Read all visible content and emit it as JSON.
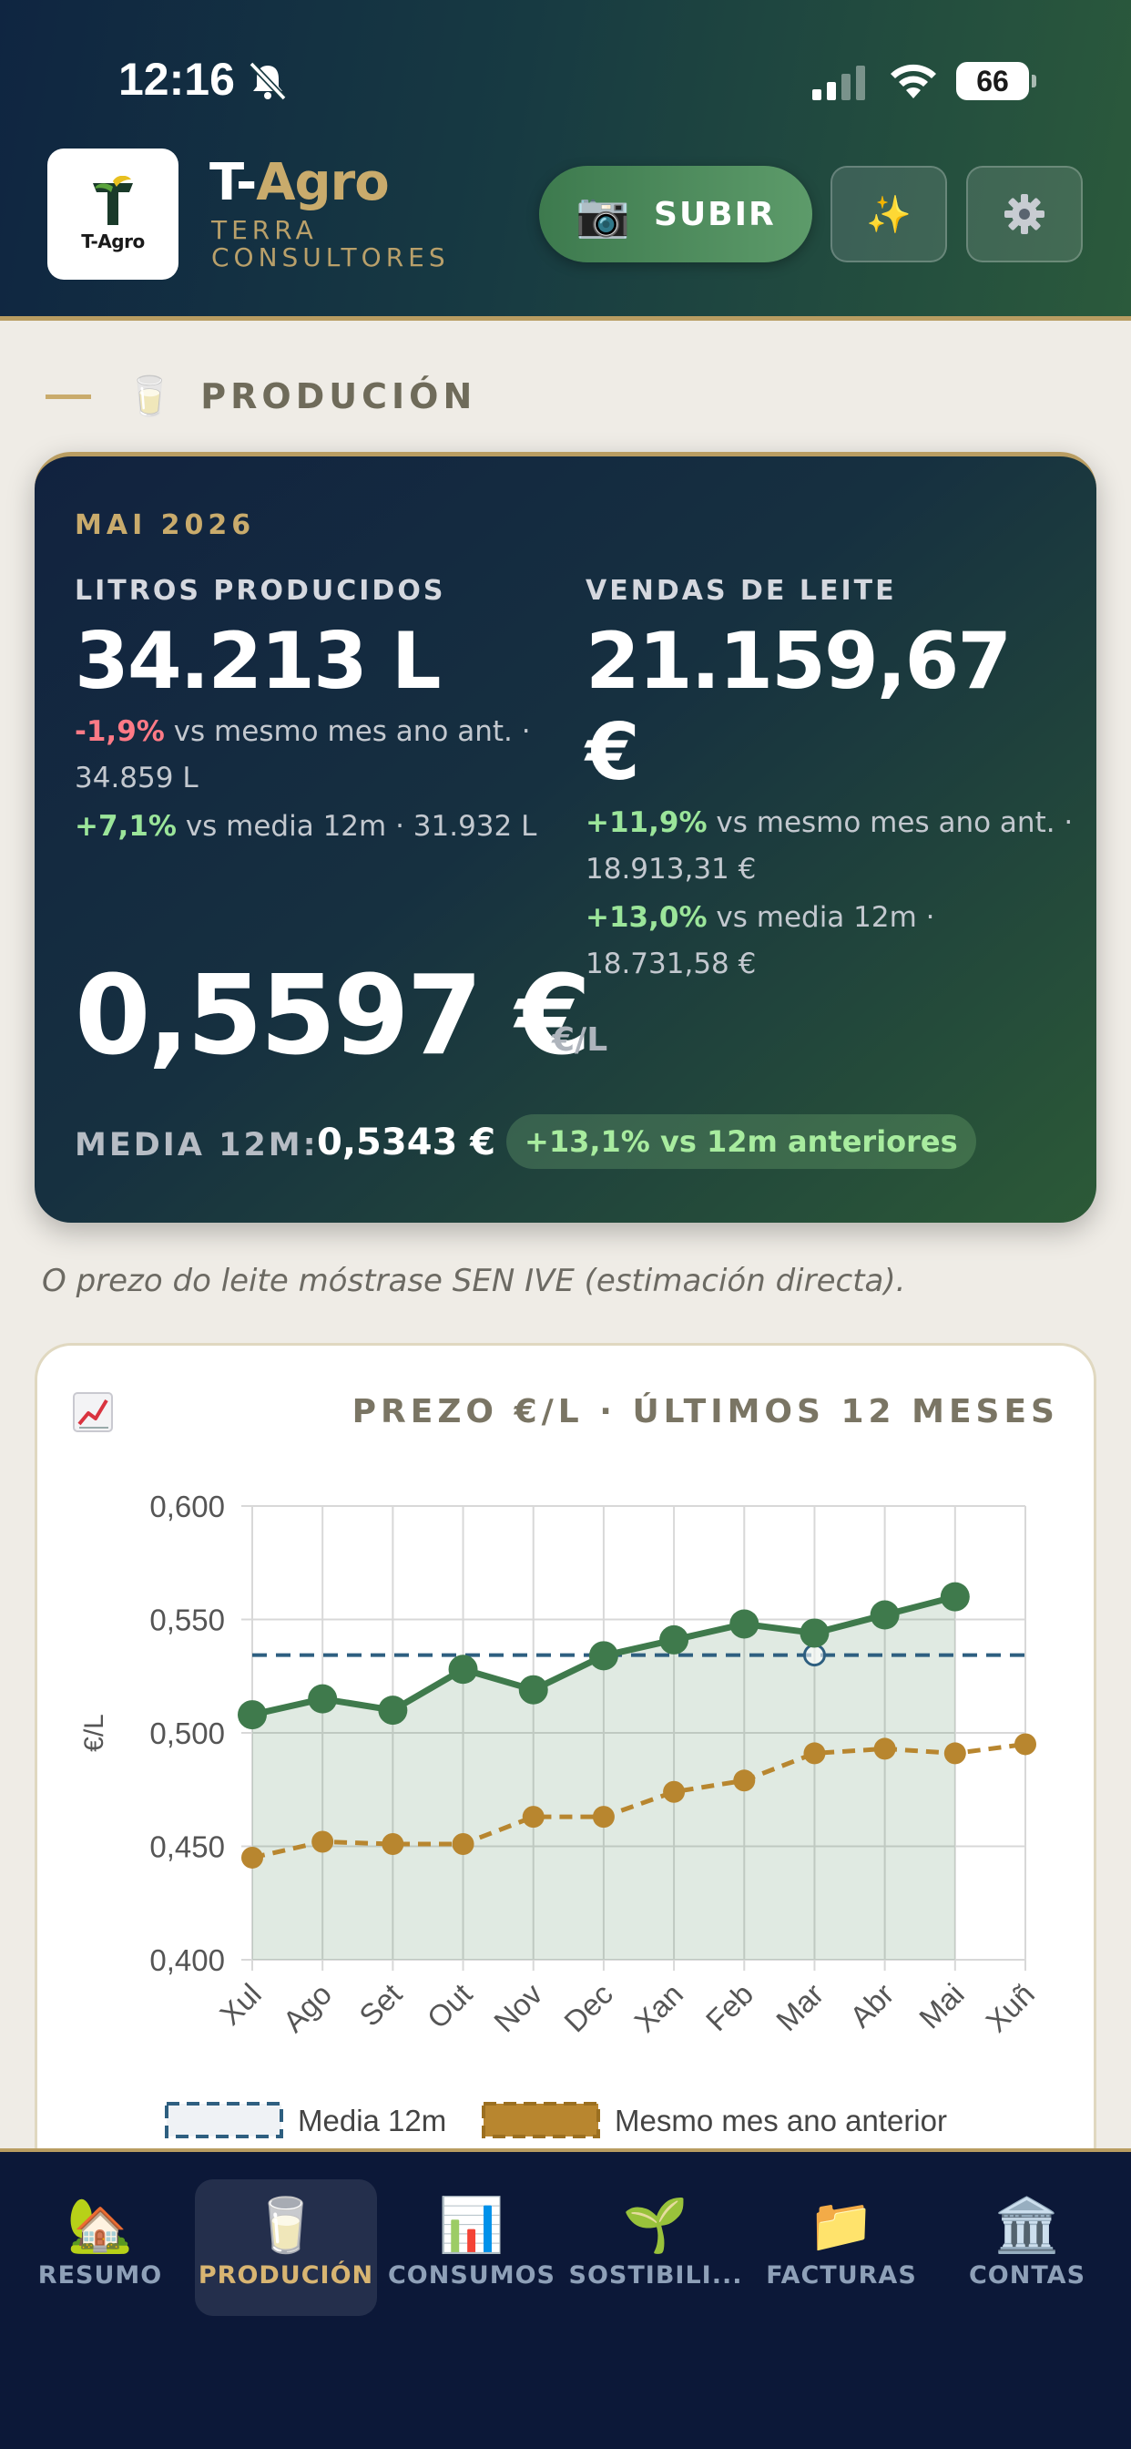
{
  "status_bar": {
    "time": "12:16",
    "battery": "66"
  },
  "header": {
    "logo_text": "T-Agro",
    "brand_prefix": "T-",
    "brand_accent": "Agro",
    "brand_sub": "TERRA CONSULTORES",
    "upload_button": "SUBIR",
    "upload_icon": "camera-icon",
    "sparkle_icon": "sparkles-icon",
    "settings_icon": "gear-icon"
  },
  "section": {
    "title": "PRODUCIÓN",
    "icon": "milk-glass-icon"
  },
  "production_card": {
    "period": "MAI 2026",
    "liters": {
      "label": "LITROS PRODUCIDOS",
      "value": "34.213 L",
      "vs_prev_year_pct": "-1,9%",
      "vs_prev_year_text": "vs mesmo mes ano ant. · 34.859 L",
      "vs_avg_pct": "+7,1%",
      "vs_avg_text": "vs media 12m · 31.932 L"
    },
    "sales": {
      "label": "VENDAS DE LEITE",
      "value": "21.159,67 €",
      "vs_prev_year_pct": "+11,9%",
      "vs_prev_year_text": "vs mesmo mes ano ant. · 18.913,31 €",
      "vs_avg_pct": "+13,0%",
      "vs_avg_text": "vs media 12m · 18.731,58 €"
    },
    "price": "0,5597 €",
    "price_unit": "€/L",
    "avg_label": "MEDIA 12M:",
    "avg_value": "0,5343 €",
    "avg_badge": "+13,1% vs 12m anteriores"
  },
  "note": "O prezo do leite móstrase SEN IVE (estimación directa).",
  "chart_card": {
    "title": "PREZO €/L · ÚLTIMOS 12 MESES",
    "icon": "chart-up-icon"
  },
  "chart_data": {
    "type": "line",
    "title": "PREZO €/L · ÚLTIMOS 12 MESES",
    "ylabel": "€/L",
    "xlabel": "",
    "categories": [
      "Xul",
      "Ago",
      "Set",
      "Out",
      "Nov",
      "Dec",
      "Xan",
      "Feb",
      "Mar",
      "Abr",
      "Mai",
      "Xuñ"
    ],
    "ylim": [
      0.4,
      0.6
    ],
    "yticks": [
      "0,400",
      "0,450",
      "0,500",
      "0,550",
      "0,600"
    ],
    "series": [
      {
        "values": [
          0.508,
          0.515,
          0.51,
          0.528,
          0.519,
          0.534,
          0.541,
          0.548,
          0.544,
          0.552,
          0.56,
          null
        ],
        "color": "#3f7a4c"
      },
      {
        "name": "Media 12m",
        "values": [
          0.5343,
          0.5343,
          0.5343,
          0.5343,
          0.5343,
          0.5343,
          0.5343,
          0.5343,
          0.5343,
          0.5343,
          0.5343,
          0.5343
        ],
        "color": "#2e5f80"
      },
      {
        "name": "Mesmo mes ano anterior",
        "values": [
          0.445,
          0.452,
          0.451,
          0.451,
          0.463,
          0.463,
          0.474,
          0.479,
          0.491,
          0.493,
          0.491,
          0.495
        ],
        "color": "#b8862f"
      }
    ],
    "grid": true,
    "legend_position": "bottom"
  },
  "bottom_nav": [
    {
      "label": "RESUMO",
      "icon": "house-icon",
      "emoji": "🏡",
      "active": false
    },
    {
      "label": "PRODUCIÓN",
      "icon": "milk-glass-icon",
      "emoji": "🥛",
      "active": true
    },
    {
      "label": "CONSUMOS",
      "icon": "bar-chart-icon",
      "emoji": "📊",
      "active": false
    },
    {
      "label": "SOSTIBILI...",
      "icon": "seedling-icon",
      "emoji": "🌱",
      "active": false
    },
    {
      "label": "FACTURAS",
      "icon": "folder-icon",
      "emoji": "📁",
      "active": false
    },
    {
      "label": "CONTAS",
      "icon": "bank-icon",
      "emoji": "🏛️",
      "active": false
    }
  ]
}
